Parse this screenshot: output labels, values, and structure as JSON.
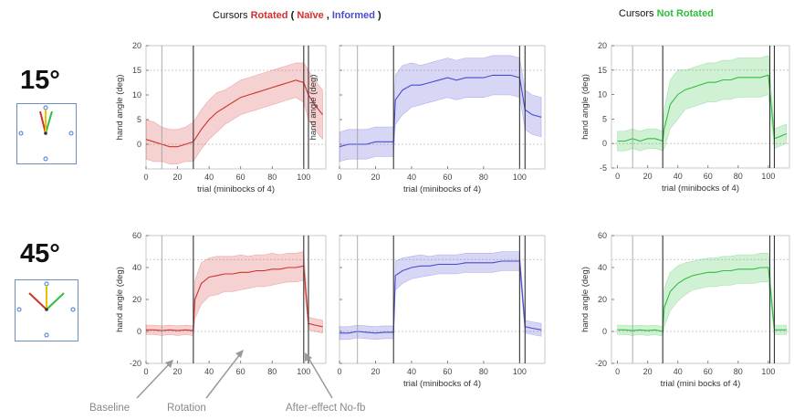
{
  "header": {
    "rotated_prefix": "Cursors",
    "rotated_word": "Rotated",
    "paren_open": "(",
    "naive": "Naïve",
    "comma": ",",
    "informed": "Informed",
    "paren_close": ")",
    "not_rotated_prefix": "Cursors",
    "not_rotated_word": "Not Rotated"
  },
  "rows": [
    {
      "label": "15°"
    },
    {
      "label": "45°"
    }
  ],
  "annotations": {
    "baseline": "Baseline",
    "rotation": "Rotation",
    "aftereffect": "After-effect No-fb"
  },
  "colors": {
    "naive": "#d0312d",
    "informed": "#4a4ad0",
    "not_rotated": "#2fbf3f",
    "diagram_border": "#6a8fc0"
  },
  "chart_data": [
    {
      "id": "15-naive",
      "type": "line",
      "rotation_deg": 15,
      "group": "Naïve",
      "xlabel": "trial (minibocks of 4)",
      "ylabel": "hand angle (deg)",
      "xlim": [
        0,
        114
      ],
      "ylim": [
        -5,
        20
      ],
      "xticks": [
        0,
        20,
        40,
        60,
        80,
        100
      ],
      "yticks": [
        0,
        5,
        10,
        15,
        20
      ],
      "ref_lines": [
        0,
        15
      ],
      "phase_lines": [
        10,
        30,
        100,
        103
      ],
      "color": "#d0312d",
      "x": [
        0,
        5,
        10,
        15,
        20,
        25,
        30,
        35,
        40,
        45,
        50,
        55,
        60,
        65,
        70,
        75,
        80,
        85,
        90,
        95,
        100,
        103,
        107,
        112
      ],
      "y": [
        1,
        0.5,
        0,
        -0.5,
        -0.5,
        0,
        0.5,
        3,
        5,
        6.5,
        7.5,
        8.5,
        9.5,
        10,
        10.5,
        11,
        11.5,
        12,
        12.5,
        13,
        12.5,
        10,
        8,
        6
      ],
      "band": [
        4,
        4,
        3.5,
        3.5,
        3.5,
        3.5,
        4,
        4,
        4,
        4,
        3.5,
        3.5,
        3.5,
        3.5,
        3.5,
        3.5,
        3.5,
        3.5,
        3.5,
        3.5,
        4,
        5,
        5,
        5
      ]
    },
    {
      "id": "15-informed",
      "type": "line",
      "rotation_deg": 15,
      "group": "Informed",
      "xlabel": "trial (minibocks of 4)",
      "ylabel": "hand angle (deg)",
      "xlim": [
        0,
        114
      ],
      "ylim": [
        -5,
        20
      ],
      "xticks": [
        0,
        20,
        40,
        60,
        80,
        100
      ],
      "yticks": [
        0,
        5,
        10,
        15,
        20
      ],
      "ref_lines": [
        0,
        15
      ],
      "phase_lines": [
        10,
        30,
        100,
        103
      ],
      "color": "#4a4ad0",
      "x": [
        0,
        5,
        10,
        15,
        20,
        25,
        30,
        31,
        35,
        40,
        45,
        50,
        55,
        60,
        65,
        70,
        75,
        80,
        85,
        90,
        95,
        100,
        103,
        107,
        112
      ],
      "y": [
        -0.5,
        0,
        0,
        0,
        0.5,
        0.5,
        0.5,
        9,
        11,
        12,
        12,
        12.5,
        13,
        13.5,
        13,
        13.5,
        13.5,
        13.5,
        14,
        14,
        14,
        13.5,
        7,
        6,
        5.5
      ],
      "band": [
        3,
        3,
        3,
        3,
        3,
        3,
        3,
        5,
        5,
        4.5,
        4,
        4,
        4,
        4,
        4,
        4,
        4,
        4,
        4,
        4,
        4,
        4,
        4,
        4,
        4
      ]
    },
    {
      "id": "15-not-rotated",
      "type": "line",
      "rotation_deg": 15,
      "group": "Not Rotated",
      "xlabel": "trial (minibocks of 4)",
      "ylabel": "hand angle (deg)",
      "xlim": [
        -4,
        114
      ],
      "ylim": [
        -5,
        20
      ],
      "xticks": [
        0,
        20,
        40,
        60,
        80,
        100
      ],
      "yticks": [
        -5,
        0,
        5,
        10,
        15,
        20
      ],
      "ref_lines": [
        0,
        15
      ],
      "phase_lines": [
        10,
        30,
        101,
        104
      ],
      "color": "#2fbf3f",
      "x": [
        0,
        5,
        10,
        15,
        20,
        25,
        30,
        31,
        35,
        40,
        45,
        50,
        55,
        60,
        65,
        70,
        75,
        80,
        85,
        90,
        95,
        100,
        104,
        108,
        112
      ],
      "y": [
        0.5,
        0.5,
        1,
        0.5,
        1,
        1,
        0.5,
        3,
        8,
        10,
        11,
        11.5,
        12,
        12.5,
        12.5,
        13,
        13,
        13.5,
        13.5,
        13.5,
        13.5,
        14,
        1,
        1.5,
        2
      ],
      "band": [
        2,
        2,
        2,
        2,
        2,
        2,
        2,
        4,
        5,
        5,
        4,
        4,
        4,
        4,
        4,
        4,
        4,
        4,
        4,
        4,
        4,
        4,
        2,
        2,
        2
      ]
    },
    {
      "id": "45-naive",
      "type": "line",
      "rotation_deg": 45,
      "group": "Naïve",
      "xlabel": "",
      "ylabel": "hand angle (deg)",
      "xlim": [
        0,
        114
      ],
      "ylim": [
        -20,
        60
      ],
      "xticks": [
        0,
        20,
        40,
        60,
        80,
        100
      ],
      "yticks": [
        -20,
        0,
        20,
        40,
        60
      ],
      "ref_lines": [
        0,
        45
      ],
      "phase_lines": [
        10,
        30,
        100,
        103
      ],
      "color": "#d0312d",
      "x": [
        0,
        5,
        10,
        15,
        20,
        25,
        30,
        31,
        35,
        40,
        45,
        50,
        55,
        60,
        65,
        70,
        75,
        80,
        85,
        90,
        95,
        100,
        103,
        107,
        112
      ],
      "y": [
        1,
        1,
        0.5,
        1,
        0.5,
        1,
        0.5,
        20,
        30,
        34,
        35,
        36,
        36,
        37,
        37,
        38,
        38,
        39,
        39,
        40,
        40,
        41,
        5,
        4,
        3
      ],
      "band": [
        3,
        3,
        3,
        3,
        3,
        3,
        3,
        12,
        13,
        12,
        12,
        11,
        11,
        11,
        10,
        10,
        10,
        10,
        9,
        9,
        9,
        9,
        4,
        4,
        4
      ]
    },
    {
      "id": "45-informed",
      "type": "line",
      "rotation_deg": 45,
      "group": "Informed",
      "xlabel": "trial (minibocks of 4)",
      "ylabel": "",
      "xlim": [
        0,
        114
      ],
      "ylim": [
        -20,
        60
      ],
      "xticks": [
        0,
        20,
        40,
        60,
        80,
        100
      ],
      "yticks": [
        -20,
        0,
        20,
        40,
        60
      ],
      "ref_lines": [
        0,
        45
      ],
      "phase_lines": [
        10,
        30,
        100,
        103
      ],
      "color": "#4a4ad0",
      "x": [
        0,
        5,
        10,
        15,
        20,
        25,
        30,
        31,
        35,
        40,
        45,
        50,
        55,
        60,
        65,
        70,
        75,
        80,
        85,
        90,
        95,
        100,
        103,
        107,
        112
      ],
      "y": [
        -1,
        -1,
        0,
        -0.5,
        -1,
        -0.5,
        -0.5,
        35,
        38,
        40,
        41,
        41,
        42,
        42,
        42,
        43,
        43,
        43,
        43,
        44,
        44,
        44,
        3,
        2,
        1
      ],
      "band": [
        4,
        4,
        4,
        4,
        4,
        4,
        4,
        9,
        8,
        7,
        7,
        6,
        6,
        6,
        6,
        6,
        6,
        6,
        6,
        6,
        6,
        6,
        4,
        4,
        4
      ]
    },
    {
      "id": "45-not-rotated",
      "type": "line",
      "rotation_deg": 45,
      "group": "Not Rotated",
      "xlabel": "trial (mini bocks of 4)",
      "ylabel": "hand angle (deg)",
      "xlim": [
        -4,
        114
      ],
      "ylim": [
        -20,
        60
      ],
      "xticks": [
        0,
        20,
        40,
        60,
        80,
        100
      ],
      "yticks": [
        -20,
        0,
        20,
        40,
        60
      ],
      "ref_lines": [
        0,
        45
      ],
      "phase_lines": [
        10,
        30,
        101,
        104
      ],
      "color": "#2fbf3f",
      "x": [
        0,
        5,
        10,
        15,
        20,
        25,
        30,
        31,
        35,
        40,
        45,
        50,
        55,
        60,
        65,
        70,
        75,
        80,
        85,
        90,
        95,
        100,
        104,
        108,
        112
      ],
      "y": [
        1,
        1,
        0.5,
        1,
        0.5,
        1,
        0,
        15,
        25,
        30,
        33,
        35,
        36,
        37,
        37,
        38,
        38,
        39,
        39,
        39,
        40,
        40,
        1,
        1,
        1
      ],
      "band": [
        3,
        3,
        3,
        3,
        3,
        3,
        3,
        12,
        12,
        11,
        10,
        9,
        9,
        9,
        9,
        9,
        9,
        9,
        9,
        9,
        9,
        9,
        3,
        3,
        3
      ]
    }
  ]
}
